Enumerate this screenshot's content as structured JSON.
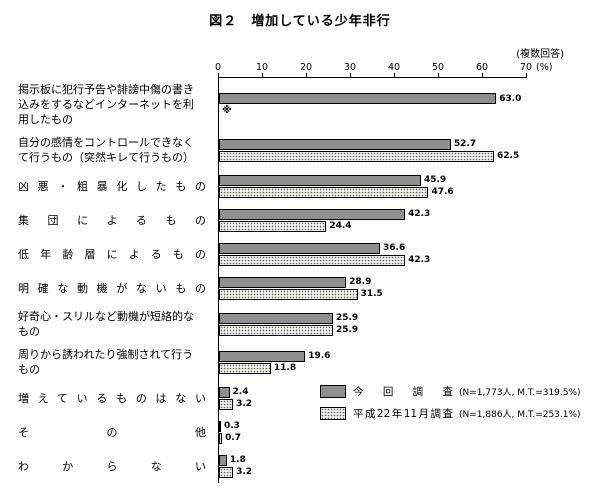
{
  "title": "図２　増加している少年非行",
  "note": "(複数回答)",
  "axis": {
    "ticks": [
      0,
      10,
      20,
      30,
      40,
      50,
      60,
      70
    ],
    "max": 70,
    "unit": "(%)"
  },
  "legend": {
    "items": [
      {
        "label": "今回調査",
        "detail": "(N=1,773人, M.T.=319.5%)",
        "swatch": "solid"
      },
      {
        "label": "平成22年11月調査",
        "detail": "(N=1,886人, M.T.=253.1%)",
        "swatch": "dotted"
      }
    ]
  },
  "colors": {
    "bar_solid": "#8f8f8f",
    "bar_dotted_bg": "#f4f3ee",
    "border": "#000000"
  },
  "rows": [
    {
      "label_lines": [
        "掲示板に犯行予告や誹謗中傷の書き",
        "込みをするなどインターネットを利",
        "用したもの"
      ],
      "spread": false
    },
    {
      "label_lines": [
        "自分の感情をコントロールできなく",
        "て行うもの（突然キレて行うもの）"
      ],
      "spread": false
    },
    {
      "label_lines": [
        "凶悪・粗暴化したもの"
      ],
      "spread": true
    },
    {
      "label_lines": [
        "集団によるもの"
      ],
      "spread": true
    },
    {
      "label_lines": [
        "低年齢層によるもの"
      ],
      "spread": true
    },
    {
      "label_lines": [
        "明確な動機がないもの"
      ],
      "spread": true
    },
    {
      "label_lines": [
        "好奇心・スリルなど動機が短絡的な",
        "もの"
      ],
      "spread": false
    },
    {
      "label_lines": [
        "周りから誘われたり強制されて行う",
        "もの"
      ],
      "spread": false
    },
    {
      "label_lines": [
        "増えているものはない"
      ],
      "spread": true
    },
    {
      "label_lines": [
        "その他"
      ],
      "spread": true
    },
    {
      "label_lines": [
        "わからない"
      ],
      "spread": true
    }
  ],
  "chart_data": {
    "type": "bar",
    "orientation": "horizontal",
    "title": "図２　増加している少年非行",
    "unit": "%",
    "xlim": [
      0,
      70
    ],
    "x_ticks": [
      0,
      10,
      20,
      30,
      40,
      50,
      60,
      70
    ],
    "multiple_answer": true,
    "missing_marker": "※",
    "categories": [
      "掲示板に犯行予告や誹謗中傷の書き込みをするなどインターネットを利用したもの",
      "自分の感情をコントロールできなくて行うもの（突然キレて行うもの）",
      "凶悪・粗暴化したもの",
      "集団によるもの",
      "低年齢層によるもの",
      "明確な動機がないもの",
      "好奇心・スリルなど動機が短絡的なもの",
      "周りから誘われたり強制されて行うもの",
      "増えているものはない",
      "その他",
      "わからない"
    ],
    "series": [
      {
        "name": "今回調査",
        "values": [
          63.0,
          52.7,
          45.9,
          42.3,
          36.6,
          28.9,
          25.9,
          19.6,
          2.4,
          0.3,
          1.8
        ]
      },
      {
        "name": "平成22年11月調査",
        "values": [
          null,
          62.5,
          47.6,
          24.4,
          42.3,
          31.5,
          25.9,
          11.8,
          3.2,
          0.7,
          3.2
        ]
      }
    ]
  }
}
